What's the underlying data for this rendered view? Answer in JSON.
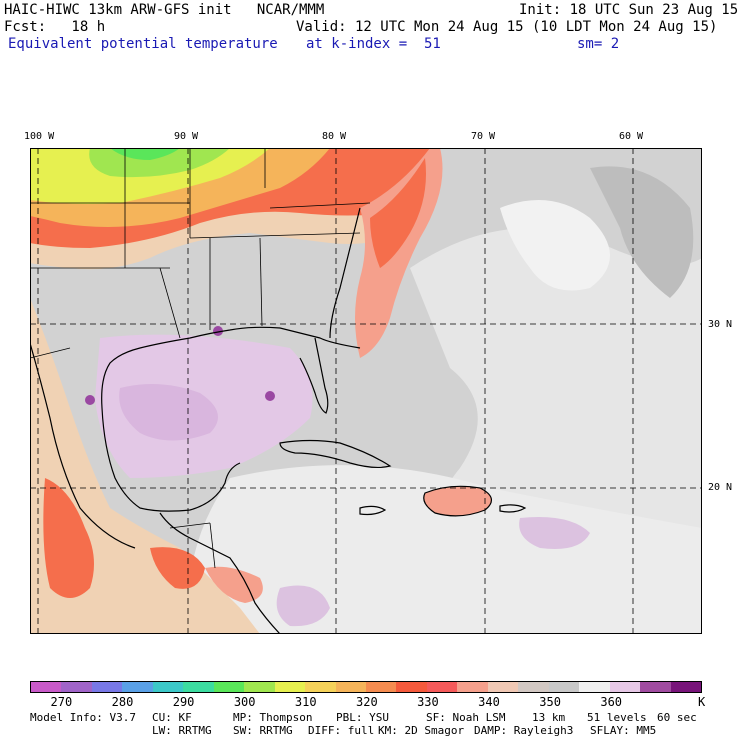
{
  "header": {
    "line1_left": "HAIC-HIWC 13km ARW-GFS init   NCAR/MMM",
    "line1_right": "Init: 18 UTC Sun 23 Aug 15",
    "line2_left": "Fcst:   18 h",
    "line2_right": "Valid: 12 UTC Mon 24 Aug 15 (10 LDT Mon 24 Aug 15)",
    "field_name": "Equivalent potential temperature",
    "level_label": "at k-index =  51",
    "smoothing": "sm= 2"
  },
  "map": {
    "longitude_labels": [
      "100 W",
      "90 W",
      "80 W",
      "70 W",
      "60 W"
    ],
    "latitude_labels": [
      "30 N",
      "20 N"
    ],
    "region": "Gulf of Mexico, Caribbean, southeastern United States, western Atlantic"
  },
  "colorbar": {
    "colors": [
      "#c85ac8",
      "#a064c8",
      "#7878e6",
      "#5aa0e6",
      "#3cc8c8",
      "#3cdca0",
      "#5ae65a",
      "#a0e650",
      "#e6f050",
      "#f5d25a",
      "#f5b45a",
      "#f58c50",
      "#f55a3c",
      "#f55a5a",
      "#f5a08c",
      "#f0c8b4",
      "#d2c8c3",
      "#c8c8c8",
      "#f0f0f0",
      "#e6c8e6",
      "#a04ca0",
      "#78147a"
    ],
    "tick_labels": [
      "270",
      "280",
      "290",
      "300",
      "310",
      "320",
      "330",
      "340",
      "350",
      "360"
    ],
    "unit": "K"
  },
  "footer": {
    "row1": [
      "Model Info: V3.7",
      "CU: KF",
      "MP: Thompson",
      "PBL: YSU",
      "SF: Noah LSM",
      "13 km",
      "51 levels",
      "60 sec"
    ],
    "row2": [
      "LW: RRTMG",
      "SW: RRTMG",
      "DIFF: full",
      "KM: 2D Smagor",
      "DAMP: Rayleigh3",
      "SFLAY: MM5"
    ]
  }
}
